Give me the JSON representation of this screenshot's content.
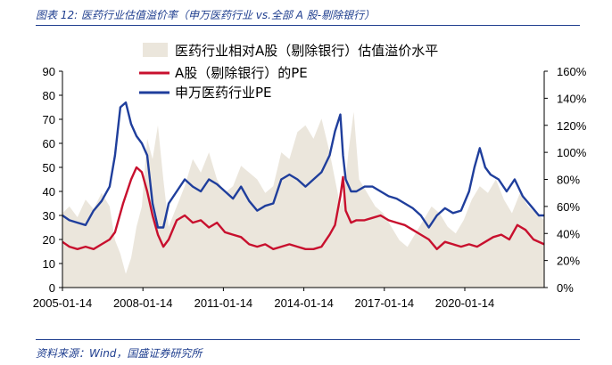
{
  "header": {
    "title": "图表 12:  医药行业估值溢价率（申万医药行业 vs.全部 A 股-剔除银行）"
  },
  "footer": {
    "source": "资料来源：Wind，国盛证券研究所"
  },
  "colors": {
    "premium": "#ebe6dc",
    "a_share": "#c8102e",
    "pharma": "#1f3e9c",
    "text": "#1f3e8f"
  },
  "chart_data": {
    "type": "line",
    "x_ticks": [
      "2005-01-14",
      "2008-01-14",
      "2011-01-14",
      "2014-01-14",
      "2017-01-14",
      "2020-01-14"
    ],
    "x_range": [
      2005.04,
      2023.0
    ],
    "y_left": {
      "range": [
        0,
        90
      ],
      "ticks": [
        "0",
        "10",
        "20",
        "30",
        "40",
        "50",
        "60",
        "70",
        "80",
        "90"
      ]
    },
    "y_right": {
      "range": [
        0,
        160
      ],
      "ticks": [
        "0%",
        "20%",
        "40%",
        "60%",
        "80%",
        "100%",
        "120%",
        "140%",
        "160%"
      ]
    },
    "series": [
      {
        "name": "医药行业相对A股（剔除银行）估值溢价水平",
        "kind": "area",
        "axis": "right",
        "x": [
          2005.04,
          2005.3,
          2005.6,
          2005.9,
          2006.2,
          2006.5,
          2006.8,
          2007.0,
          2007.2,
          2007.4,
          2007.6,
          2007.8,
          2008.0,
          2008.2,
          2008.4,
          2008.6,
          2008.8,
          2009.0,
          2009.3,
          2009.6,
          2009.9,
          2010.2,
          2010.5,
          2010.8,
          2011.1,
          2011.4,
          2011.7,
          2012.0,
          2012.3,
          2012.6,
          2012.9,
          2013.2,
          2013.5,
          2013.8,
          2014.1,
          2014.4,
          2014.7,
          2015.0,
          2015.2,
          2015.4,
          2015.55,
          2015.7,
          2015.9,
          2016.1,
          2016.4,
          2016.7,
          2017.0,
          2017.3,
          2017.6,
          2017.9,
          2018.2,
          2018.5,
          2018.8,
          2019.1,
          2019.4,
          2019.7,
          2020.0,
          2020.3,
          2020.6,
          2020.9,
          2021.2,
          2021.5,
          2021.8,
          2022.1,
          2022.4,
          2022.7,
          2023.0
        ],
        "values": [
          55,
          60,
          52,
          65,
          58,
          70,
          60,
          35,
          25,
          10,
          22,
          45,
          60,
          110,
          95,
          120,
          80,
          45,
          60,
          75,
          95,
          85,
          100,
          80,
          70,
          75,
          90,
          85,
          80,
          70,
          75,
          100,
          95,
          115,
          120,
          110,
          125,
          100,
          80,
          60,
          70,
          100,
          130,
          80,
          70,
          60,
          55,
          45,
          35,
          30,
          40,
          50,
          60,
          55,
          45,
          40,
          50,
          65,
          75,
          70,
          80,
          65,
          55,
          70,
          60,
          55,
          50
        ]
      },
      {
        "name": "A股（剔除银行）的PE",
        "kind": "line",
        "axis": "left",
        "x": [
          2005.04,
          2005.3,
          2005.6,
          2005.9,
          2006.2,
          2006.5,
          2006.8,
          2007.0,
          2007.3,
          2007.6,
          2007.8,
          2008.0,
          2008.2,
          2008.4,
          2008.6,
          2008.8,
          2009.0,
          2009.3,
          2009.6,
          2009.9,
          2010.2,
          2010.5,
          2010.8,
          2011.1,
          2011.4,
          2011.7,
          2012.0,
          2012.3,
          2012.6,
          2012.9,
          2013.2,
          2013.5,
          2013.8,
          2014.1,
          2014.4,
          2014.7,
          2015.0,
          2015.2,
          2015.4,
          2015.5,
          2015.6,
          2015.8,
          2016.0,
          2016.3,
          2016.6,
          2016.9,
          2017.2,
          2017.5,
          2017.8,
          2018.1,
          2018.4,
          2018.7,
          2019.0,
          2019.3,
          2019.6,
          2019.9,
          2020.2,
          2020.5,
          2020.8,
          2021.1,
          2021.4,
          2021.7,
          2022.0,
          2022.3,
          2022.6,
          2023.0
        ],
        "values": [
          19,
          17,
          16,
          17,
          16,
          18,
          20,
          23,
          35,
          45,
          50,
          48,
          40,
          30,
          22,
          17,
          20,
          28,
          30,
          27,
          28,
          25,
          27,
          23,
          22,
          21,
          18,
          17,
          18,
          16,
          17,
          18,
          17,
          16,
          16,
          17,
          22,
          26,
          38,
          46,
          32,
          27,
          28,
          28,
          29,
          30,
          28,
          27,
          26,
          24,
          22,
          20,
          16,
          19,
          18,
          17,
          18,
          17,
          19,
          21,
          22,
          20,
          26,
          24,
          20,
          18
        ]
      },
      {
        "name": "申万医药行业PE",
        "kind": "line",
        "axis": "left",
        "x": [
          2005.04,
          2005.3,
          2005.6,
          2005.9,
          2006.2,
          2006.5,
          2006.8,
          2007.0,
          2007.2,
          2007.4,
          2007.6,
          2007.8,
          2008.0,
          2008.2,
          2008.4,
          2008.6,
          2008.8,
          2009.0,
          2009.3,
          2009.6,
          2009.9,
          2010.2,
          2010.5,
          2010.8,
          2011.1,
          2011.4,
          2011.7,
          2012.0,
          2012.3,
          2012.6,
          2012.9,
          2013.2,
          2013.5,
          2013.8,
          2014.1,
          2014.4,
          2014.7,
          2015.0,
          2015.2,
          2015.4,
          2015.5,
          2015.6,
          2015.8,
          2016.0,
          2016.3,
          2016.6,
          2016.9,
          2017.2,
          2017.5,
          2017.8,
          2018.1,
          2018.4,
          2018.7,
          2019.0,
          2019.3,
          2019.6,
          2019.9,
          2020.2,
          2020.4,
          2020.6,
          2020.8,
          2021.0,
          2021.3,
          2021.6,
          2021.9,
          2022.2,
          2022.5,
          2022.8,
          2023.0
        ],
        "values": [
          30,
          28,
          27,
          26,
          32,
          36,
          42,
          55,
          75,
          77,
          68,
          63,
          60,
          55,
          35,
          25,
          25,
          35,
          40,
          45,
          42,
          40,
          45,
          43,
          40,
          37,
          42,
          36,
          32,
          34,
          35,
          45,
          47,
          45,
          42,
          45,
          48,
          55,
          65,
          72,
          55,
          45,
          40,
          40,
          42,
          42,
          40,
          38,
          37,
          35,
          33,
          30,
          25,
          30,
          33,
          31,
          32,
          40,
          50,
          58,
          50,
          47,
          45,
          40,
          45,
          38,
          34,
          30,
          30
        ]
      }
    ]
  }
}
